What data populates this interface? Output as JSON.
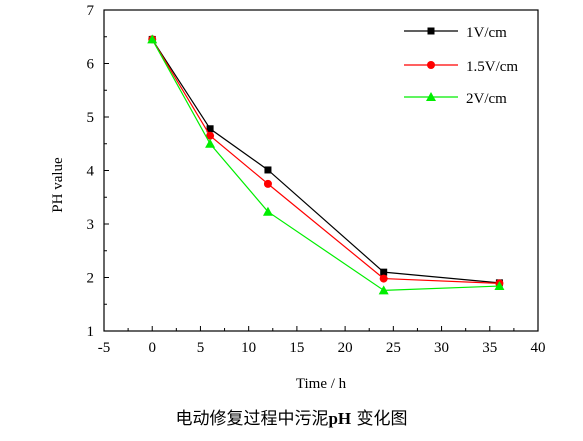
{
  "chart_data": {
    "type": "line",
    "xlabel": "Time / h",
    "ylabel": "PH value",
    "xlim": [
      -5,
      40
    ],
    "ylim": [
      1,
      7
    ],
    "xticks": [
      -5,
      0,
      5,
      10,
      15,
      20,
      25,
      30,
      35,
      40
    ],
    "yticks": [
      1,
      2,
      3,
      4,
      5,
      6,
      7
    ],
    "x": [
      0,
      6,
      12,
      24,
      36
    ],
    "legend_position": "top-right",
    "grid": false,
    "series": [
      {
        "name": "1V/cm",
        "color": "#000000",
        "marker": "square",
        "values": [
          6.45,
          4.78,
          4.01,
          2.1,
          1.9
        ]
      },
      {
        "name": "1.5V/cm",
        "color": "#ff0000",
        "marker": "circle",
        "values": [
          6.45,
          4.65,
          3.75,
          1.98,
          1.89
        ]
      },
      {
        "name": "2V/cm",
        "color": "#00ee00",
        "marker": "triangle",
        "values": [
          6.45,
          4.5,
          3.23,
          1.76,
          1.84
        ]
      }
    ]
  },
  "caption": {
    "prefix": "电动修复过程中污泥",
    "bold": "pH",
    "suffix": "变化图"
  }
}
